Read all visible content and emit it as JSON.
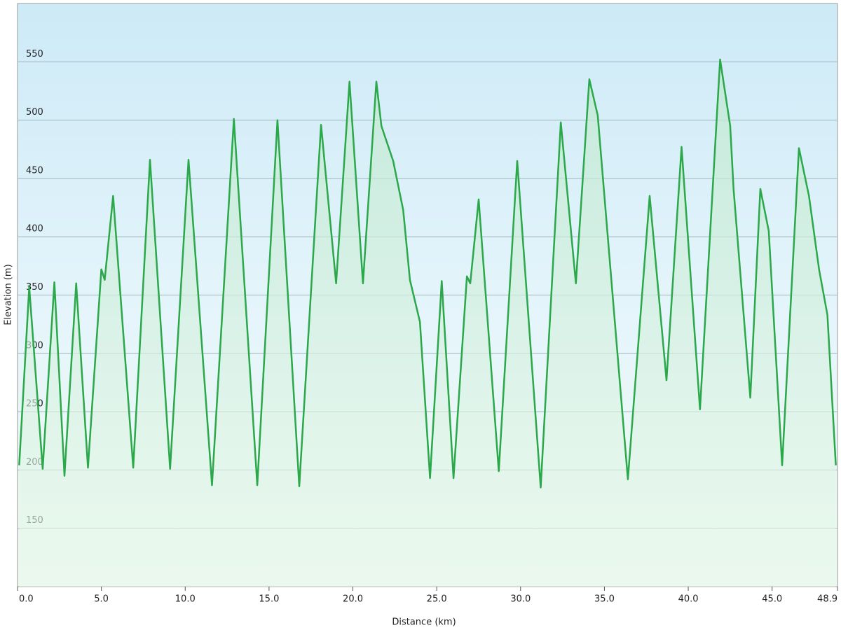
{
  "chart_data": {
    "type": "area-line",
    "x_label": "Distance  (km)",
    "y_label": "Elevation (m)",
    "x": [
      0.1,
      0.7,
      1.5,
      2.2,
      2.8,
      3.5,
      4.2,
      5.0,
      5.2,
      5.7,
      6.9,
      7.9,
      9.1,
      10.2,
      11.6,
      12.9,
      14.3,
      15.5,
      16.8,
      18.1,
      19.0,
      19.8,
      20.6,
      21.4,
      21.7,
      22.4,
      23.0,
      23.4,
      24.0,
      24.6,
      25.3,
      26.0,
      26.8,
      27.0,
      27.5,
      28.7,
      29.8,
      31.2,
      32.4,
      33.3,
      34.1,
      34.6,
      36.4,
      37.7,
      38.7,
      39.6,
      40.7,
      41.9,
      42.5,
      42.7,
      43.7,
      44.3,
      44.8,
      45.6,
      46.6,
      47.2,
      47.8,
      48.3,
      48.8
    ],
    "values": [
      204,
      357,
      201,
      361,
      195,
      360,
      202,
      372,
      363,
      435,
      202,
      466,
      201,
      466,
      187,
      501,
      187,
      500,
      186,
      496,
      360,
      533,
      360,
      533,
      495,
      465,
      423,
      363,
      327,
      193,
      362,
      193,
      366,
      360,
      432,
      199,
      465,
      185,
      498,
      360,
      535,
      504,
      192,
      435,
      277,
      477,
      252,
      552,
      495,
      441,
      262,
      441,
      405,
      204,
      476,
      435,
      372,
      333,
      204
    ],
    "color": "#2aa84a",
    "xlim": [
      0,
      48.9
    ],
    "ylim": [
      100,
      600
    ],
    "xticks": [
      {
        "value": 0,
        "label": "0.0"
      },
      {
        "value": 5,
        "label": "5.0"
      },
      {
        "value": 10,
        "label": "10.0"
      },
      {
        "value": 15,
        "label": "15.0"
      },
      {
        "value": 20,
        "label": "20.0"
      },
      {
        "value": 25,
        "label": "25.0"
      },
      {
        "value": 30,
        "label": "30.0"
      },
      {
        "value": 35,
        "label": "35.0"
      },
      {
        "value": 40,
        "label": "40.0"
      },
      {
        "value": 45,
        "label": "45.0"
      },
      48.9
    ],
    "yticks": [
      150,
      200,
      250,
      300,
      350,
      400,
      450,
      500,
      550
    ],
    "grid": true
  }
}
